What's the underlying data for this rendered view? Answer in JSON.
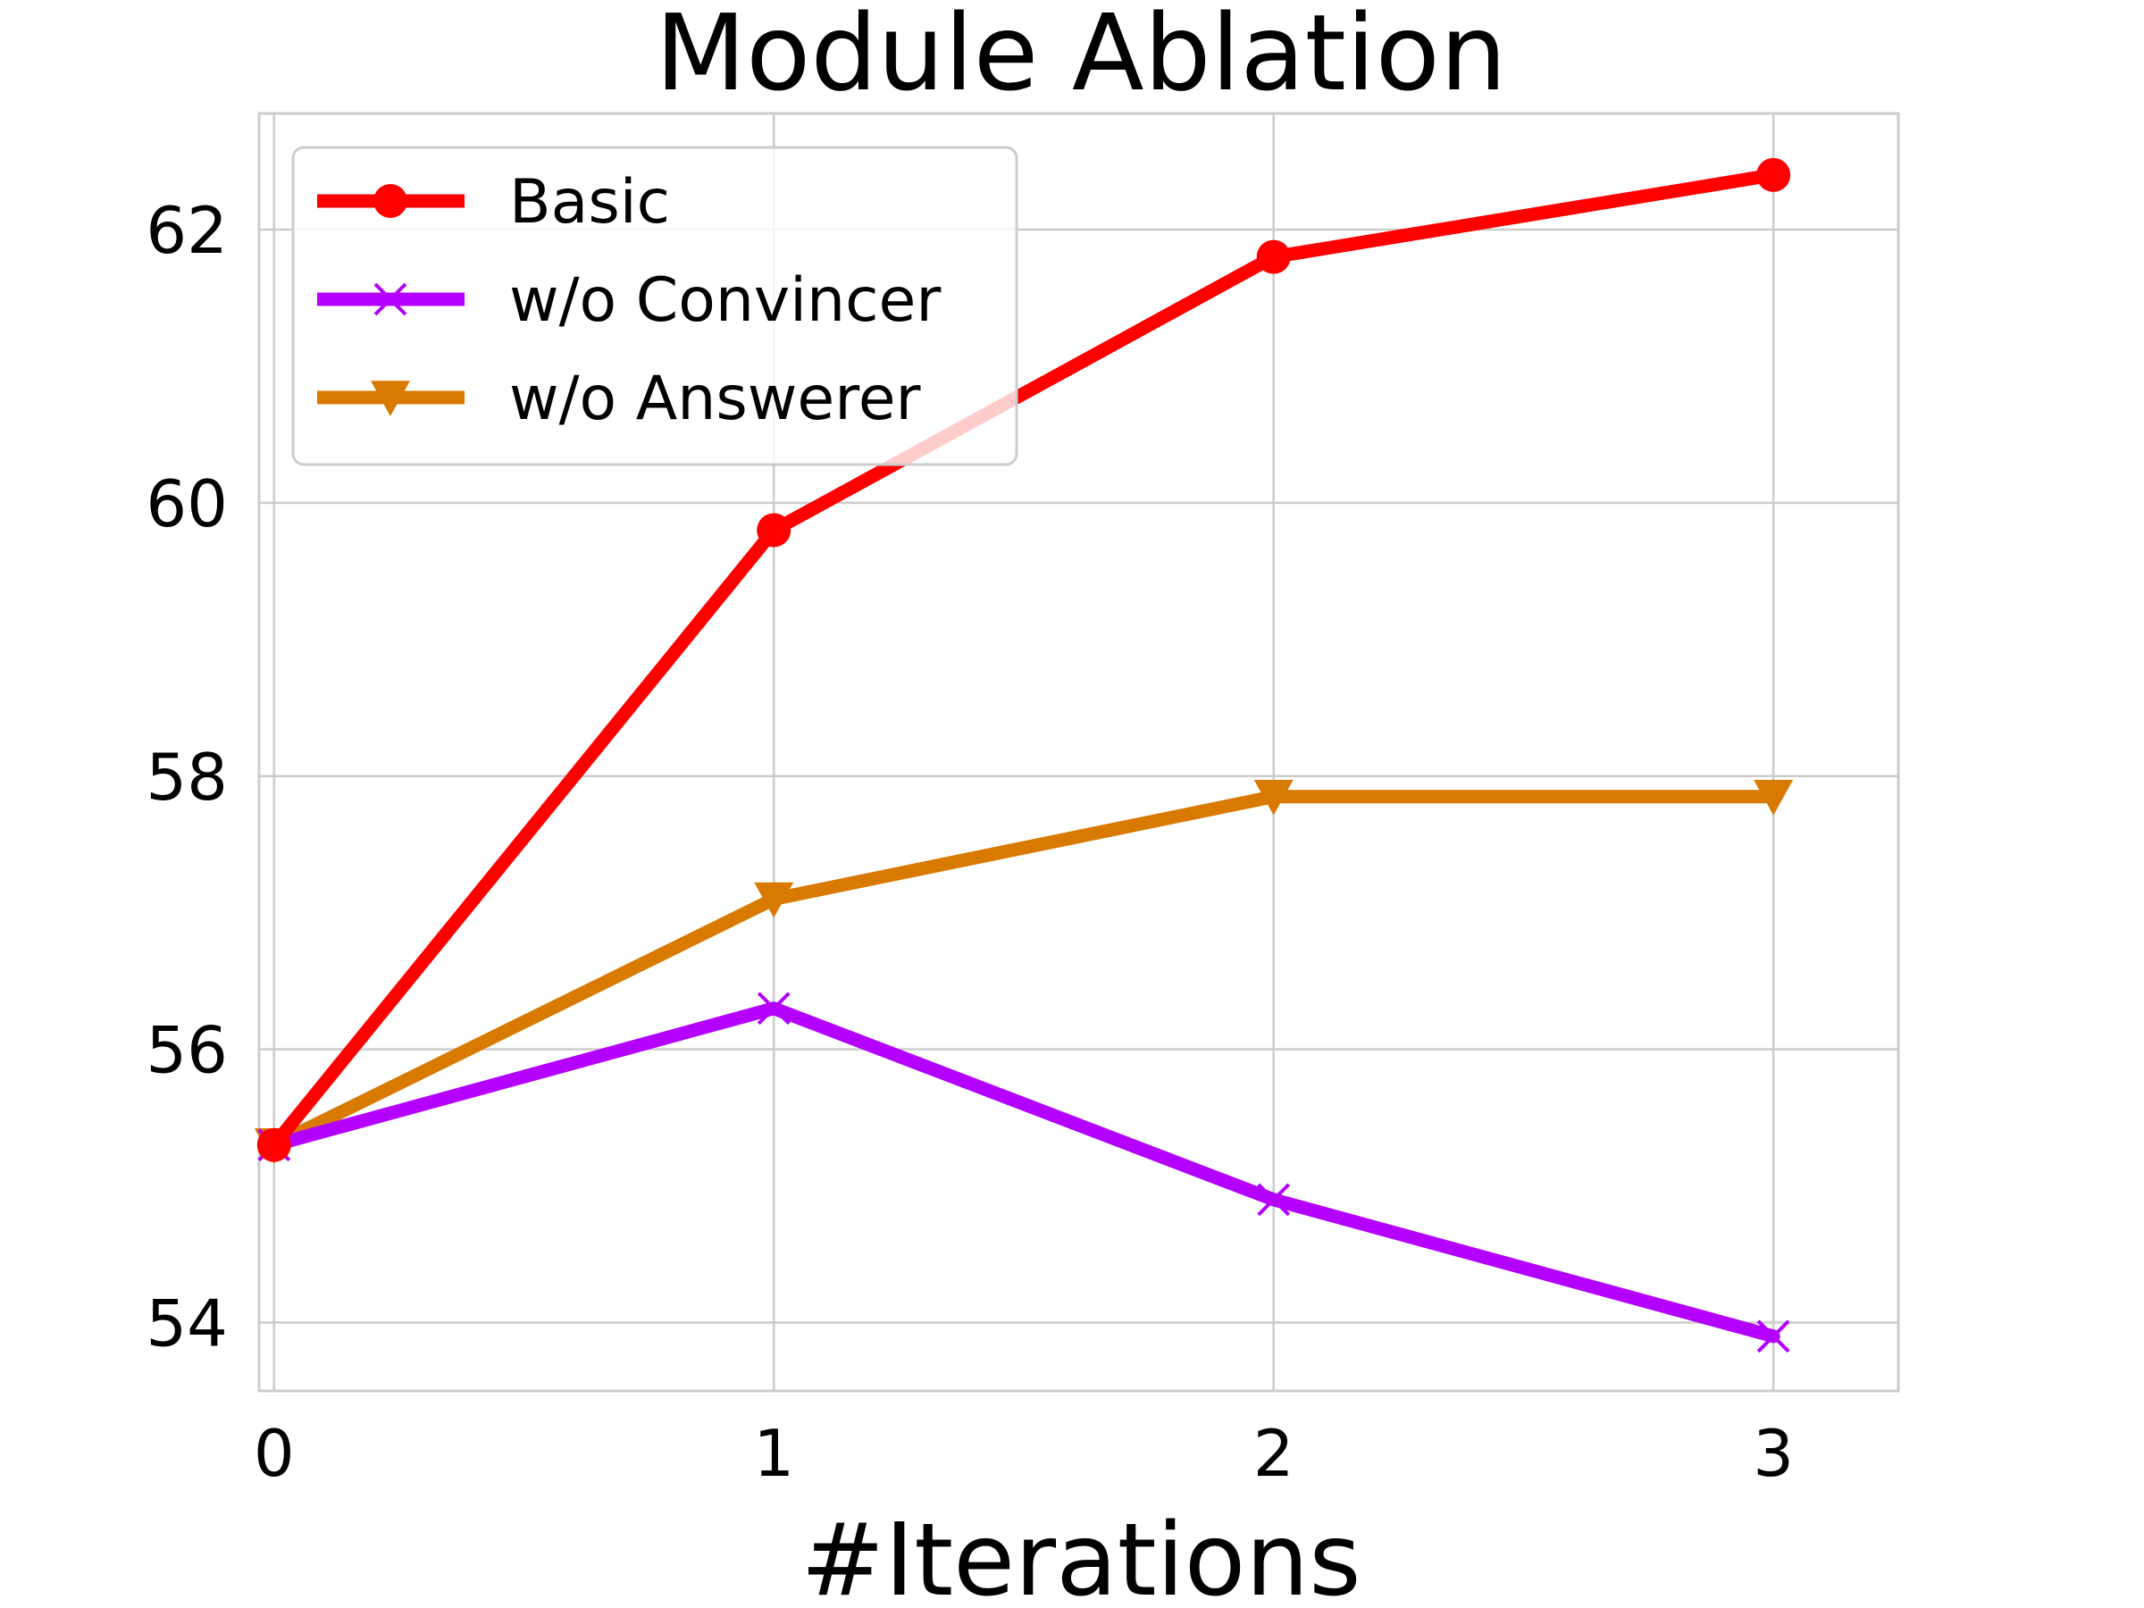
{
  "chart_data": {
    "type": "line",
    "title": "Module Ablation",
    "xlabel": "#Iterations",
    "ylabel": "",
    "x": [
      0,
      1,
      2,
      3
    ],
    "xticks": [
      "0",
      "1",
      "2",
      "3"
    ],
    "yticks": [
      "54",
      "56",
      "58",
      "60",
      "62"
    ],
    "xlim": [
      -0.03,
      3.25
    ],
    "ylim": [
      53.5,
      62.85
    ],
    "grid": true,
    "legend_position": "top-left",
    "series": [
      {
        "name": "Basic",
        "values": [
          55.3,
          59.8,
          61.8,
          62.4
        ],
        "color": "#ff0000",
        "marker": "circle"
      },
      {
        "name": "w/o Convincer",
        "values": [
          55.3,
          56.3,
          54.9,
          53.9
        ],
        "color": "#b300ff",
        "marker": "x"
      },
      {
        "name": "w/o Answerer",
        "values": [
          55.3,
          57.1,
          57.85,
          57.85
        ],
        "color": "#d97a00",
        "marker": "triangle-down"
      }
    ]
  }
}
